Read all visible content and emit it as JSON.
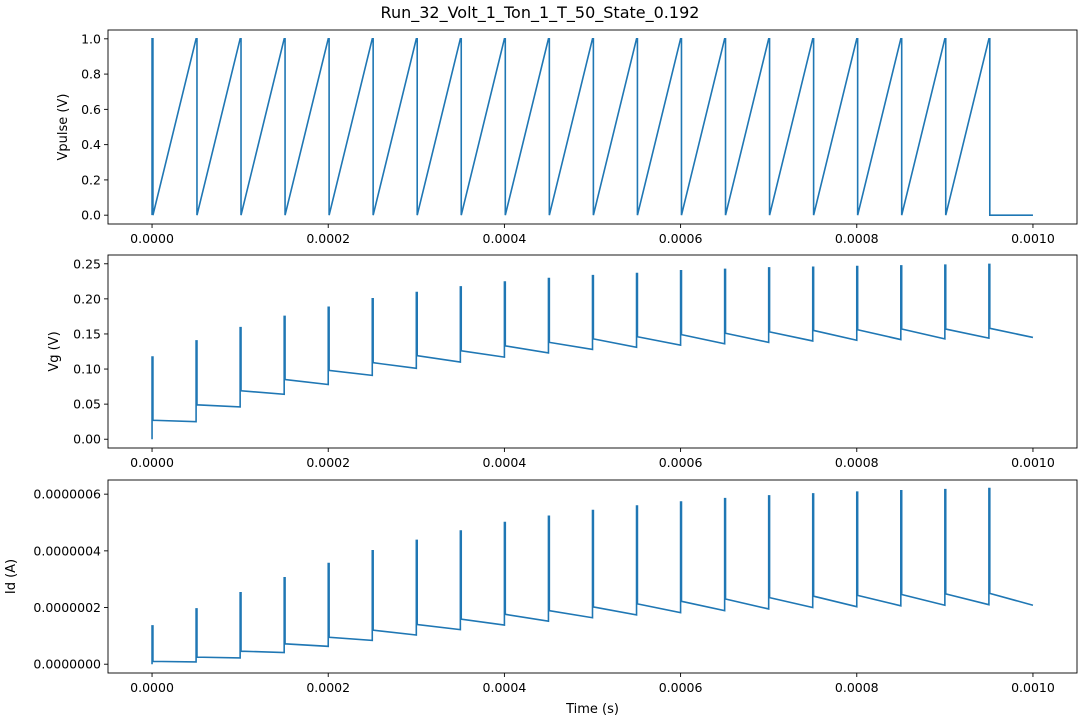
{
  "figure": {
    "title": "Run_32_Volt_1_Ton_1_T_50_State_0.192"
  },
  "chart_data": [
    {
      "type": "line",
      "ylabel": "Vpulse (V)",
      "xlabel": "",
      "xlim": [
        -5e-05,
        0.00105
      ],
      "ylim": [
        -0.05,
        1.05
      ],
      "xticks": [
        "0.0000",
        "0.0002",
        "0.0004",
        "0.0006",
        "0.0008",
        "0.0010"
      ],
      "yticks": [
        "0.0",
        "0.2",
        "0.4",
        "0.6",
        "0.8",
        "1.0"
      ],
      "color": "#1f77b4",
      "series": [
        {
          "signal": "pulse",
          "period": 5e-05,
          "pulse_width": 1e-06,
          "pulse_count": 20,
          "low": 0.0,
          "high": 1.0,
          "t_end": 0.001
        }
      ]
    },
    {
      "type": "line",
      "ylabel": "Vg (V)",
      "xlabel": "",
      "xlim": [
        -5e-05,
        0.00105
      ],
      "ylim": [
        -0.0125,
        0.2625
      ],
      "xticks": [
        "0.0000",
        "0.0002",
        "0.0004",
        "0.0006",
        "0.0008",
        "0.0010"
      ],
      "yticks": [
        "0.00",
        "0.05",
        "0.10",
        "0.15",
        "0.20",
        "0.25"
      ],
      "color": "#1f77b4",
      "series": [
        {
          "signal": "sawtooth",
          "period": 5e-05,
          "pulse_times": [
            0,
            5e-05,
            0.0001,
            0.00015,
            0.0002,
            0.00025,
            0.0003,
            0.00035,
            0.0004,
            0.00045,
            0.0005,
            0.00055,
            0.0006,
            0.00065,
            0.0007,
            0.00075,
            0.0008,
            0.00085,
            0.0009,
            0.00095
          ],
          "start_values": [
            0.0,
            0.025,
            0.046,
            0.064,
            0.078,
            0.091,
            0.101,
            0.11,
            0.117,
            0.123,
            0.128,
            0.131,
            0.134,
            0.136,
            0.138,
            0.14,
            0.141,
            0.142,
            0.143,
            0.144
          ],
          "peak_values": [
            0.117,
            0.14,
            0.159,
            0.175,
            0.188,
            0.2,
            0.209,
            0.217,
            0.224,
            0.229,
            0.233,
            0.236,
            0.24,
            0.242,
            0.244,
            0.245,
            0.246,
            0.247,
            0.248,
            0.249
          ],
          "after_values": [
            0.027,
            0.049,
            0.069,
            0.085,
            0.098,
            0.109,
            0.119,
            0.126,
            0.133,
            0.138,
            0.143,
            0.146,
            0.149,
            0.151,
            0.153,
            0.155,
            0.156,
            0.157,
            0.157,
            0.158
          ],
          "end_value": 0.145,
          "t_end": 0.001
        }
      ]
    },
    {
      "type": "line",
      "ylabel": "Id (A)",
      "xlabel": "Time (s)",
      "xlim": [
        -5e-05,
        0.00105
      ],
      "ylim": [
        -3.1e-08,
        6.5e-07
      ],
      "xticks": [
        "0.0000",
        "0.0002",
        "0.0004",
        "0.0006",
        "0.0008",
        "0.0010"
      ],
      "yticks": [
        "0.0000000",
        "0.0000002",
        "0.0000004",
        "0.0000006"
      ],
      "color": "#1f77b4",
      "series": [
        {
          "signal": "sawtooth",
          "period": 5e-05,
          "pulse_times": [
            0,
            5e-05,
            0.0001,
            0.00015,
            0.0002,
            0.00025,
            0.0003,
            0.00035,
            0.0004,
            0.00045,
            0.0005,
            0.00055,
            0.0006,
            0.00065,
            0.0007,
            0.00075,
            0.0008,
            0.00085,
            0.0009,
            0.00095
          ],
          "start_values": [
            0.0,
            8e-09,
            2.2e-08,
            4.1e-08,
            6.3e-08,
            8.4e-08,
            1.03e-07,
            1.22e-07,
            1.38e-07,
            1.52e-07,
            1.64e-07,
            1.74e-07,
            1.82e-07,
            1.89e-07,
            1.95e-07,
            2e-07,
            2.03e-07,
            2.06e-07,
            2.08e-07,
            2.1e-07
          ],
          "peak_values": [
            1.35e-07,
            1.95e-07,
            2.52e-07,
            3.05e-07,
            3.55e-07,
            4e-07,
            4.37e-07,
            4.7e-07,
            5e-07,
            5.22e-07,
            5.42e-07,
            5.58e-07,
            5.72e-07,
            5.84e-07,
            5.94e-07,
            6.01e-07,
            6.07e-07,
            6.12e-07,
            6.16e-07,
            6.2e-07
          ],
          "after_values": [
            1e-08,
            2.5e-08,
            4.6e-08,
            7.2e-08,
            9.5e-08,
            1.2e-07,
            1.4e-07,
            1.59e-07,
            1.76e-07,
            1.89e-07,
            2.02e-07,
            2.13e-07,
            2.22e-07,
            2.3e-07,
            2.35e-07,
            2.4e-07,
            2.43e-07,
            2.46e-07,
            2.48e-07,
            2.5e-07
          ],
          "end_value": 2.08e-07,
          "t_end": 0.001
        }
      ]
    }
  ]
}
